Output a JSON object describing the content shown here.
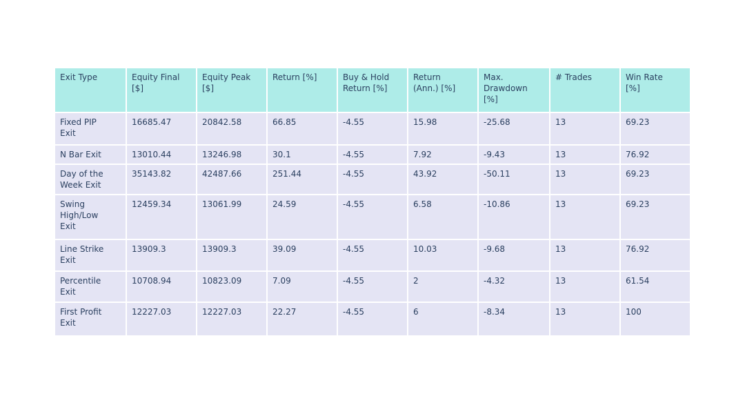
{
  "chart_data": {
    "type": "table",
    "title": "",
    "columns": [
      "Exit Type",
      "Equity Final [$]",
      "Equity Peak [$]",
      "Return [%]",
      "Buy & Hold Return [%]",
      "Return (Ann.) [%]",
      "Max. Drawdown [%]",
      "# Trades",
      "Win Rate [%]"
    ],
    "rows": [
      [
        "Fixed PIP Exit",
        16685.47,
        20842.58,
        66.85,
        -4.55,
        15.98,
        -25.68,
        13,
        69.23
      ],
      [
        "N Bar Exit",
        13010.44,
        13246.98,
        30.1,
        -4.55,
        7.92,
        -9.43,
        13,
        76.92
      ],
      [
        "Day of the Week Exit",
        35143.82,
        42487.66,
        251.44,
        -4.55,
        43.92,
        -50.11,
        13,
        69.23
      ],
      [
        "Swing High/Low Exit",
        12459.34,
        13061.99,
        24.59,
        -4.55,
        6.58,
        -10.86,
        13,
        69.23
      ],
      [
        "Line Strike Exit",
        13909.3,
        13909.3,
        39.09,
        -4.55,
        10.03,
        -9.68,
        13,
        76.92
      ],
      [
        "Percentile Exit",
        10708.94,
        10823.09,
        7.09,
        -4.55,
        2,
        -4.32,
        13,
        61.54
      ],
      [
        "First Profit Exit",
        12227.03,
        12227.03,
        22.27,
        -4.55,
        6,
        -8.34,
        13,
        100
      ]
    ],
    "layout": {
      "grid": "white 2px gaps between cells",
      "legend": "none"
    }
  },
  "table": {
    "headers": [
      "Exit Type",
      "Equity Final\n[$]",
      "Equity Peak\n[$]",
      "Return [%]",
      "Buy & Hold\nReturn [%]",
      "Return\n(Ann.) [%]",
      "Max.\nDrawdown\n[%]",
      "# Trades",
      "Win Rate\n[%]"
    ],
    "rows": [
      {
        "label": "Fixed PIP\nExit",
        "cells": [
          "16685.47",
          "20842.58",
          "66.85",
          "-4.55",
          "15.98",
          "-25.68",
          "13",
          "69.23"
        ]
      },
      {
        "label": "N Bar Exit",
        "cells": [
          "13010.44",
          "13246.98",
          "30.1",
          "-4.55",
          "7.92",
          "-9.43",
          "13",
          "76.92"
        ]
      },
      {
        "label": "Day of the\nWeek Exit",
        "cells": [
          "35143.82",
          "42487.66",
          "251.44",
          "-4.55",
          "43.92",
          "-50.11",
          "13",
          "69.23"
        ]
      },
      {
        "label": "Swing\nHigh/Low\nExit",
        "cells": [
          "12459.34",
          "13061.99",
          "24.59",
          "-4.55",
          "6.58",
          "-10.86",
          "13",
          "69.23"
        ]
      },
      {
        "label": "Line Strike\nExit",
        "cells": [
          "13909.3",
          "13909.3",
          "39.09",
          "-4.55",
          "10.03",
          "-9.68",
          "13",
          "76.92"
        ]
      },
      {
        "label": "Percentile\nExit",
        "cells": [
          "10708.94",
          "10823.09",
          "7.09",
          "-4.55",
          "2",
          "-4.32",
          "13",
          "61.54"
        ]
      },
      {
        "label": "First Profit\nExit",
        "cells": [
          "12227.03",
          "12227.03",
          "22.27",
          "-4.55",
          "6",
          "-8.34",
          "13",
          "100"
        ]
      }
    ]
  },
  "colors": {
    "header_bg": "#aeece8",
    "cell_bg": "#e4e4f4",
    "text": "#2a3f5f",
    "background": "#ffffff"
  }
}
